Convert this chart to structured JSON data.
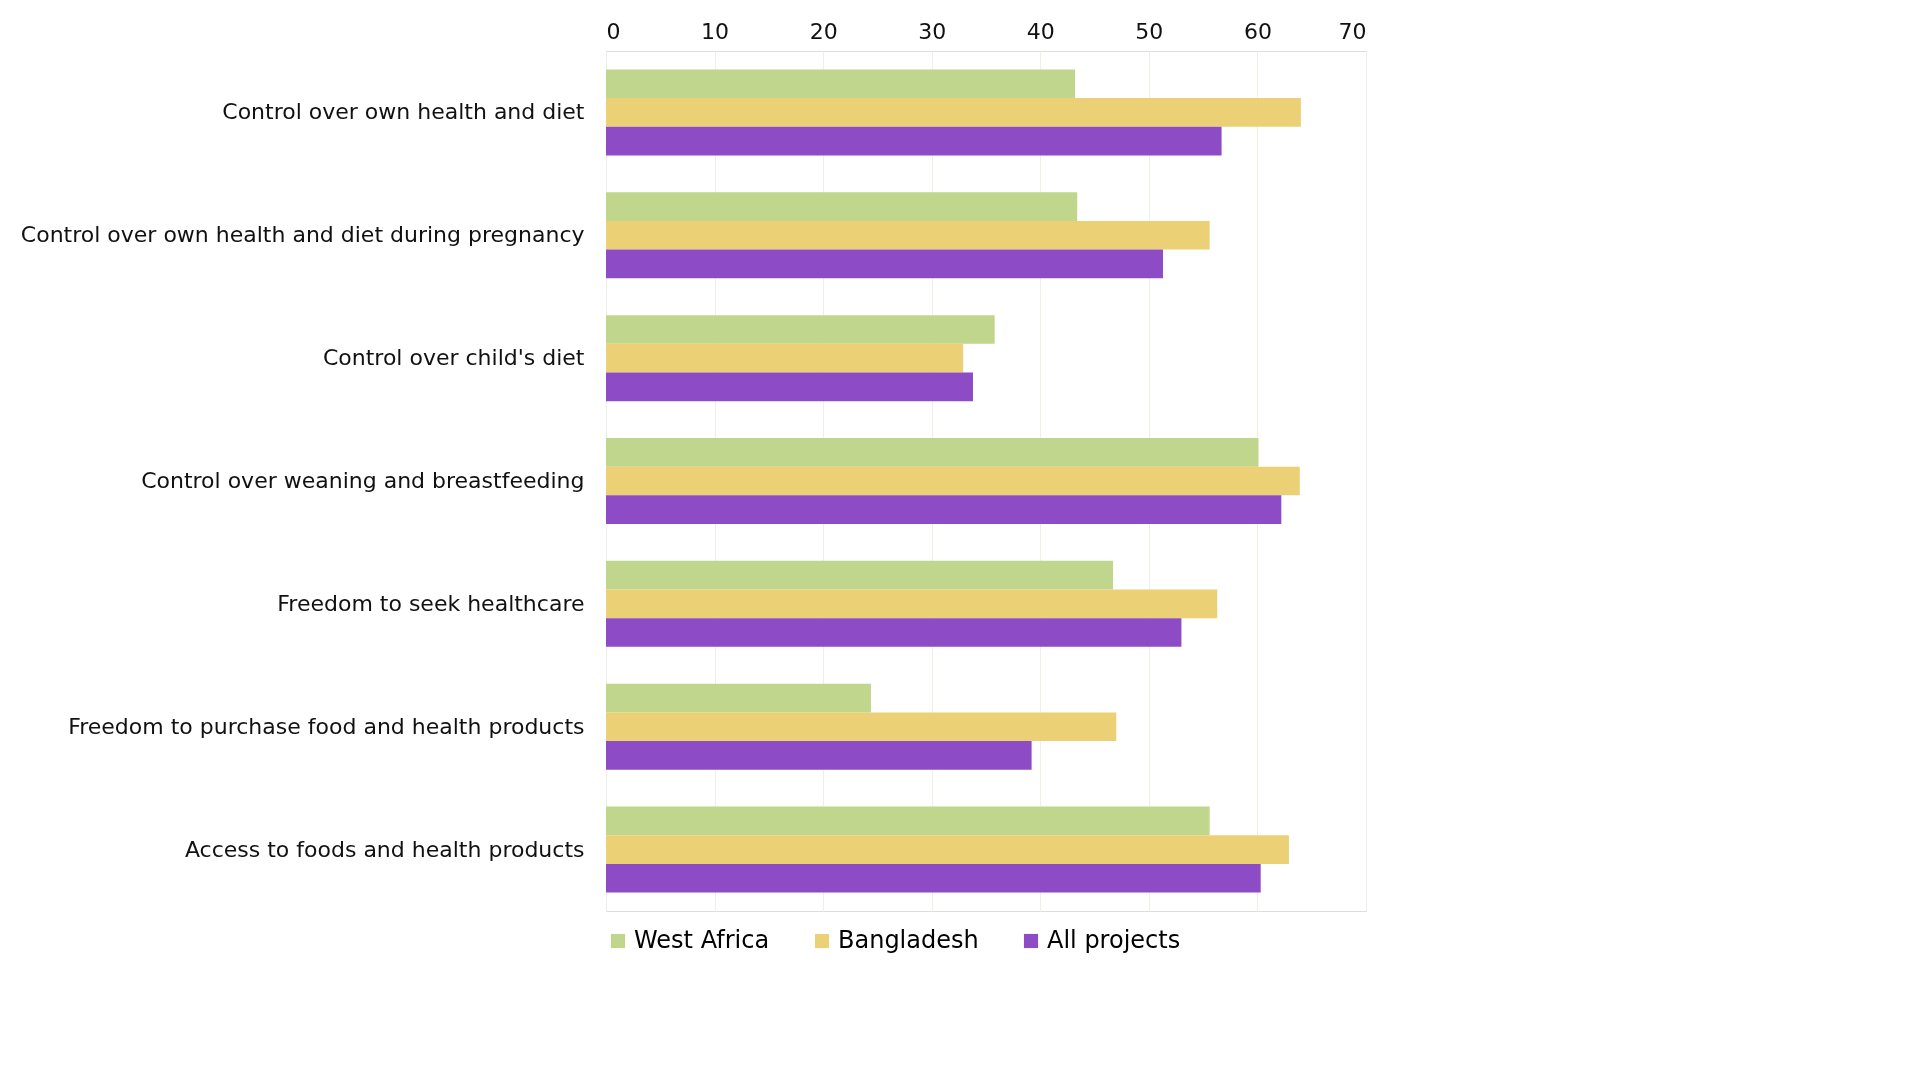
{
  "chart_data": {
    "type": "bar",
    "orientation": "horizontal",
    "categories": [
      "Control over own health and diet",
      "Control over own health and diet during pregnancy",
      "Control over child's diet",
      "Control over weaning and breastfeeding",
      "Freedom to seek healthcare",
      "Freedom to purchase food and health products",
      "Access to foods and health products"
    ],
    "series": [
      {
        "name": "West Africa",
        "color": "#c0d68c",
        "values": [
          43.2,
          43.4,
          35.8,
          60.1,
          46.7,
          24.4,
          55.6
        ]
      },
      {
        "name": "Bangladesh",
        "color": "#ecd076",
        "values": [
          64.0,
          55.6,
          32.9,
          63.9,
          56.3,
          47.0,
          62.9
        ]
      },
      {
        "name": "All projects",
        "color": "#8e4bc6",
        "values": [
          56.7,
          51.3,
          33.8,
          62.2,
          53.0,
          39.2,
          60.3
        ]
      }
    ],
    "xlim": [
      0,
      70
    ],
    "xticks": [
      0,
      10,
      20,
      30,
      40,
      50,
      60,
      70
    ],
    "grid": "x",
    "legend": "bottom"
  }
}
